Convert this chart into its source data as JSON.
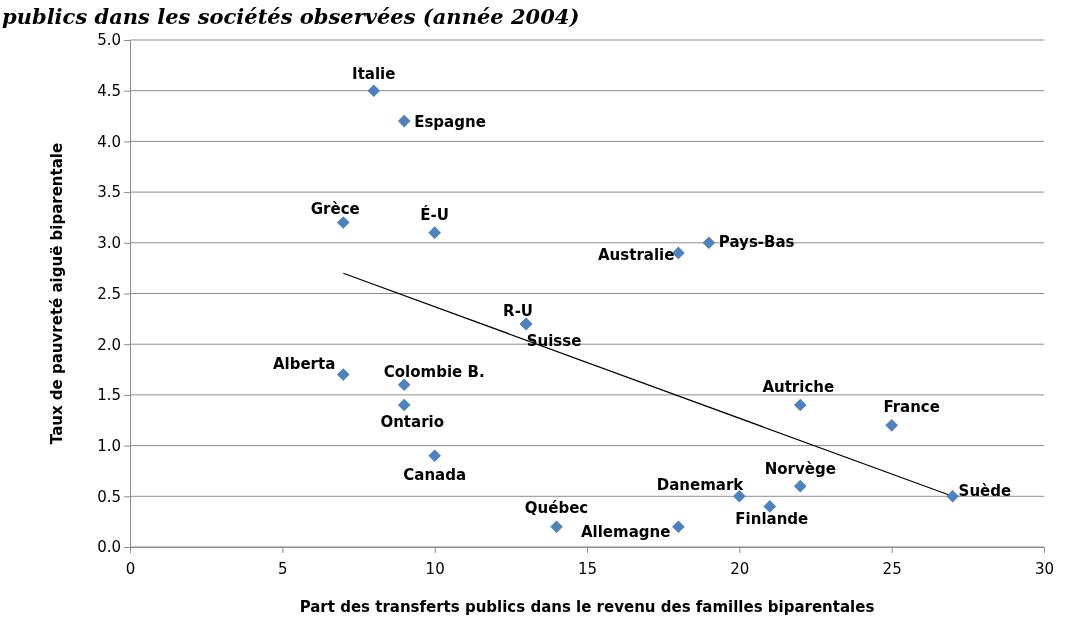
{
  "chart_data": {
    "type": "scatter",
    "title": "publics dans les sociétés observées (année 2004)",
    "xlabel": "Part des transferts publics dans le revenu des familles biparentales",
    "ylabel": "Taux de pauvreté aiguë biparentale",
    "xlim": [
      0,
      30
    ],
    "xticks": [
      0,
      5,
      10,
      15,
      20,
      25,
      30
    ],
    "ylim": [
      0,
      5
    ],
    "yticks": [
      {
        "value": 0,
        "label": "0.0"
      },
      {
        "value": 0.5,
        "label": "0.5"
      },
      {
        "value": 1,
        "label": "1.0"
      },
      {
        "value": 1.5,
        "label": "1.5"
      },
      {
        "value": 2,
        "label": "2.0"
      },
      {
        "value": 2.5,
        "label": "2.5"
      },
      {
        "value": 3,
        "label": "3.0"
      },
      {
        "value": 3.5,
        "label": "3.5"
      },
      {
        "value": 4,
        "label": "4.0"
      },
      {
        "value": 4.5,
        "label": "4.5"
      },
      {
        "value": 5,
        "label": "5.0"
      }
    ],
    "grid": "y",
    "marker": "diamond",
    "series": [
      {
        "color": "#4f81bd",
        "x": [
          8,
          9,
          7,
          10,
          18,
          19,
          13,
          13,
          7,
          9,
          9,
          10,
          14,
          18,
          20,
          21,
          22,
          22,
          25,
          27
        ],
        "values": [
          4.5,
          4.2,
          3.2,
          3.1,
          2.9,
          3.0,
          2.2,
          2.2,
          1.7,
          1.6,
          1.4,
          0.9,
          0.2,
          0.2,
          0.5,
          0.4,
          0.6,
          1.4,
          1.2,
          0.5
        ]
      },
      {
        "type": "line",
        "color": "#000000",
        "line_style": "solid",
        "marker": "none",
        "x": [
          7,
          27
        ],
        "values": [
          2.7,
          0.5
        ]
      }
    ],
    "annotations": [
      {
        "text": "Italie",
        "x": 8,
        "y": 4.5
      },
      {
        "text": "Espagne",
        "x": 9,
        "y": 4.2
      },
      {
        "text": "Grèce",
        "x": 7,
        "y": 3.2
      },
      {
        "text": "É-U",
        "x": 10,
        "y": 3.1
      },
      {
        "text": "Australie",
        "x": 18,
        "y": 2.9
      },
      {
        "text": "Pays-Bas",
        "x": 19,
        "y": 3.0
      },
      {
        "text": "R-U",
        "x": 13,
        "y": 2.2
      },
      {
        "text": "Suisse",
        "x": 13,
        "y": 2.2
      },
      {
        "text": "Alberta",
        "x": 7,
        "y": 1.7
      },
      {
        "text": "Colombie B.",
        "x": 9,
        "y": 1.6
      },
      {
        "text": "Ontario",
        "x": 9,
        "y": 1.4
      },
      {
        "text": "Canada",
        "x": 10,
        "y": 0.9
      },
      {
        "text": "Québec",
        "x": 14,
        "y": 0.2
      },
      {
        "text": "Allemagne",
        "x": 18,
        "y": 0.2
      },
      {
        "text": "Danemark",
        "x": 20,
        "y": 0.5
      },
      {
        "text": "Finlande",
        "x": 21,
        "y": 0.4
      },
      {
        "text": "Norvège",
        "x": 22,
        "y": 0.6
      },
      {
        "text": "Autriche",
        "x": 22,
        "y": 1.4
      },
      {
        "text": "France",
        "x": 25,
        "y": 1.2
      },
      {
        "text": "Suède",
        "x": 27,
        "y": 0.5
      }
    ]
  }
}
